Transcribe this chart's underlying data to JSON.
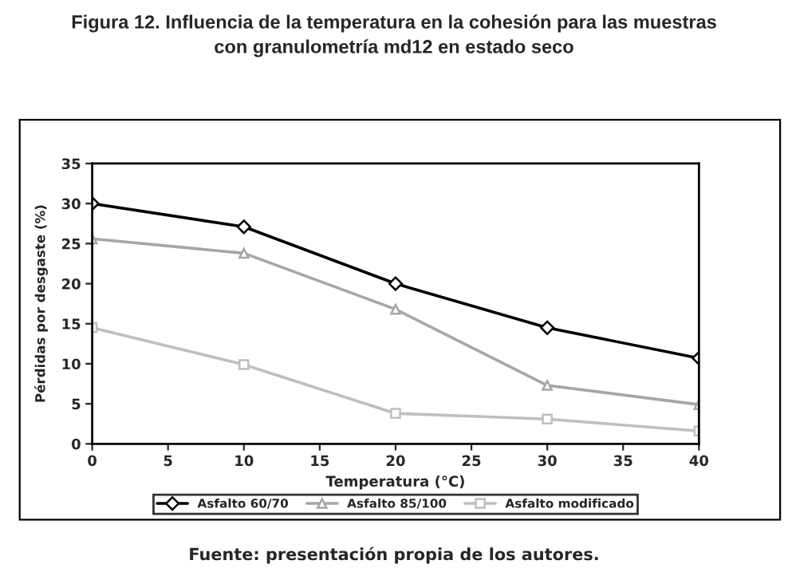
{
  "chart_data": {
    "type": "line",
    "title": "Figura 12. Influencia de la temperatura en la cohesión para las muestras\ncon granulometría md12 en estado seco",
    "xlabel": "Temperatura (°C)",
    "ylabel": "Pérdidas por desgaste (%)",
    "x": [
      0,
      10,
      20,
      30,
      40
    ],
    "series": [
      {
        "name": "Asfalto 60/70",
        "color": "#000000",
        "marker": "diamond",
        "values": [
          30,
          27.1,
          20,
          14.5,
          10.7
        ]
      },
      {
        "name": "Asfalto 85/100",
        "color": "#a6a6a6",
        "marker": "triangle",
        "values": [
          25.6,
          23.8,
          16.8,
          7.3,
          4.9
        ]
      },
      {
        "name": "Asfalto modificado",
        "color": "#bfbfbf",
        "marker": "square",
        "values": [
          14.5,
          9.9,
          3.8,
          3.1,
          1.6
        ]
      }
    ],
    "xlim": [
      0,
      40
    ],
    "xticks": [
      0,
      5,
      10,
      15,
      20,
      25,
      30,
      35,
      40
    ],
    "ylim": [
      0,
      35
    ],
    "yticks": [
      0,
      5,
      10,
      15,
      20,
      25,
      30,
      35
    ],
    "grid": false,
    "legend": "bottom",
    "line_style": "solid",
    "annotations": [
      "Fuente: presentación propia de los autores."
    ]
  }
}
